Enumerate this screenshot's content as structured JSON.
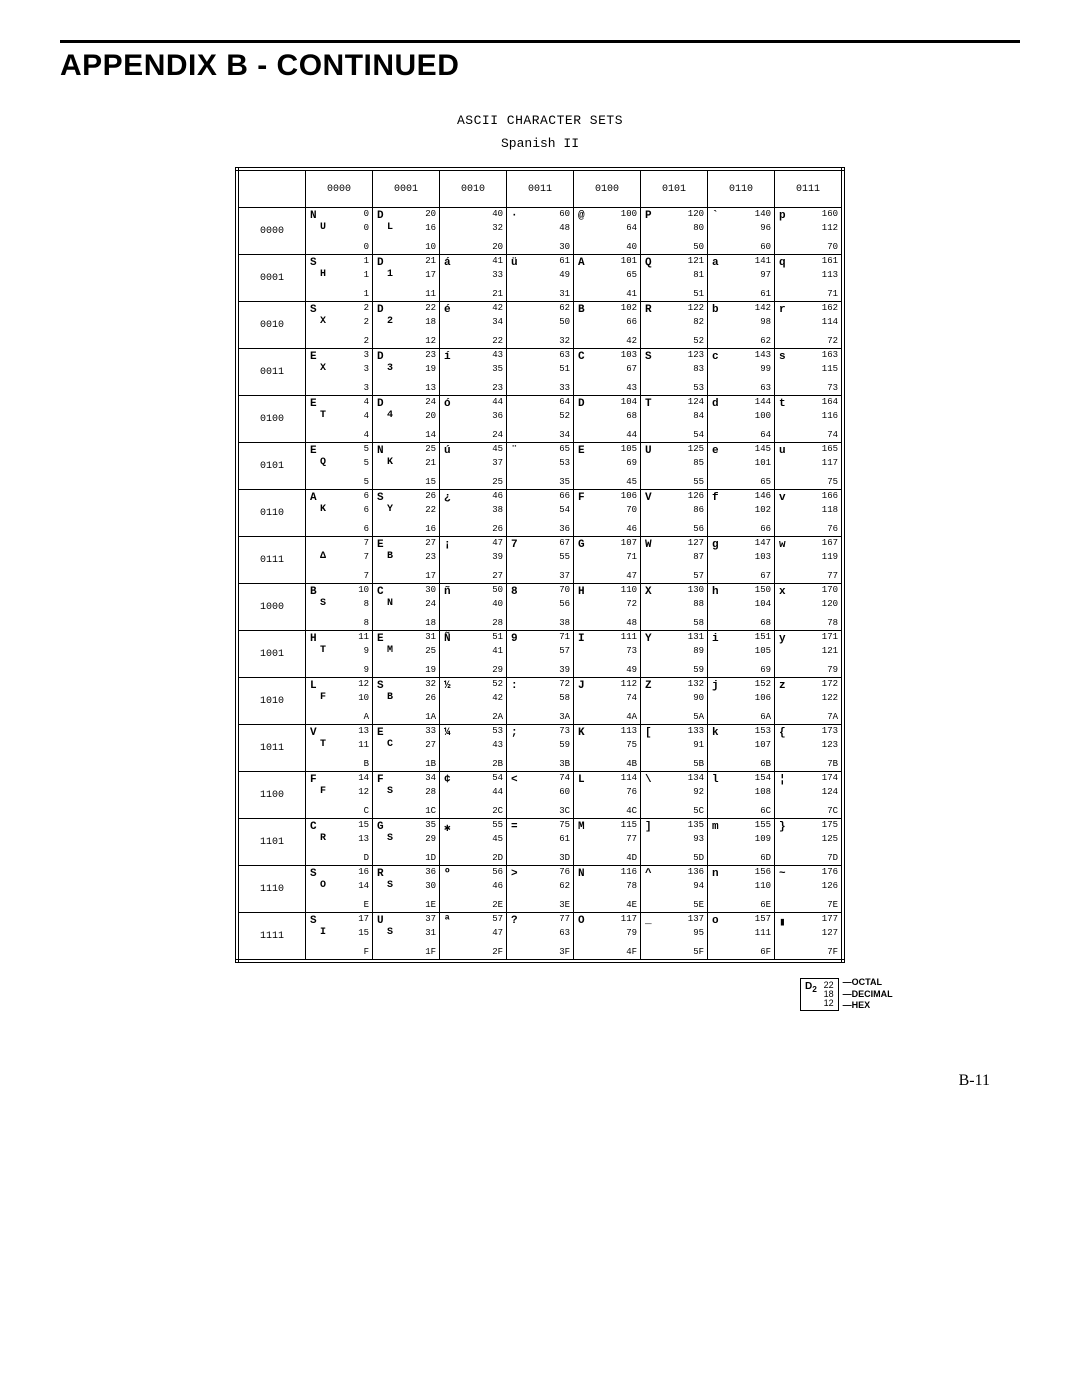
{
  "title": "APPENDIX B - CONTINUED",
  "chart_title": "ASCII CHARACTER SETS",
  "chart_subtitle": "Spanish II",
  "page_number": "B-11",
  "col_headers": [
    "",
    "0000",
    "0001",
    "0010",
    "0011",
    "0100",
    "0101",
    "0110",
    "0111"
  ],
  "row_headers": [
    "0000",
    "0001",
    "0010",
    "0011",
    "0100",
    "0101",
    "0110",
    "0111",
    "1000",
    "1001",
    "1010",
    "1011",
    "1100",
    "1101",
    "1110",
    "1111"
  ],
  "legend": {
    "glyph": "D",
    "sub": "2",
    "oct": "22",
    "dec": "18",
    "hex": "12",
    "lbl_oct": "OCTAL",
    "lbl_dec": "DECIMAL",
    "lbl_hex": "HEX"
  },
  "cells": [
    [
      {
        "g": "N",
        "c": "U",
        "o": "0",
        "d": "0",
        "h": "0"
      },
      {
        "g": "D",
        "c": "L",
        "o": "20",
        "d": "16",
        "h": "10"
      },
      {
        "g": "",
        "c": "",
        "o": "40",
        "d": "32",
        "h": "20"
      },
      {
        "g": "·",
        "c": "",
        "o": "60",
        "d": "48",
        "h": "30"
      },
      {
        "g": "@",
        "c": "",
        "o": "100",
        "d": "64",
        "h": "40"
      },
      {
        "g": "P",
        "c": "",
        "o": "120",
        "d": "80",
        "h": "50"
      },
      {
        "g": "`",
        "c": "",
        "o": "140",
        "d": "96",
        "h": "60"
      },
      {
        "g": "p",
        "c": "",
        "o": "160",
        "d": "112",
        "h": "70"
      }
    ],
    [
      {
        "g": "S",
        "c": "H",
        "o": "1",
        "d": "1",
        "h": "1"
      },
      {
        "g": "D",
        "c": "1",
        "o": "21",
        "d": "17",
        "h": "11"
      },
      {
        "g": "á",
        "c": "",
        "o": "41",
        "d": "33",
        "h": "21"
      },
      {
        "g": "ü",
        "c": "",
        "o": "61",
        "d": "49",
        "h": "31"
      },
      {
        "g": "A",
        "c": "",
        "o": "101",
        "d": "65",
        "h": "41"
      },
      {
        "g": "Q",
        "c": "",
        "o": "121",
        "d": "81",
        "h": "51"
      },
      {
        "g": "a",
        "c": "",
        "o": "141",
        "d": "97",
        "h": "61"
      },
      {
        "g": "q",
        "c": "",
        "o": "161",
        "d": "113",
        "h": "71"
      }
    ],
    [
      {
        "g": "S",
        "c": "X",
        "o": "2",
        "d": "2",
        "h": "2"
      },
      {
        "g": "D",
        "c": "2",
        "o": "22",
        "d": "18",
        "h": "12"
      },
      {
        "g": "é",
        "c": "",
        "o": "42",
        "d": "34",
        "h": "22"
      },
      {
        "g": "",
        "c": "",
        "o": "62",
        "d": "50",
        "h": "32"
      },
      {
        "g": "B",
        "c": "",
        "o": "102",
        "d": "66",
        "h": "42"
      },
      {
        "g": "R",
        "c": "",
        "o": "122",
        "d": "82",
        "h": "52"
      },
      {
        "g": "b",
        "c": "",
        "o": "142",
        "d": "98",
        "h": "62"
      },
      {
        "g": "r",
        "c": "",
        "o": "162",
        "d": "114",
        "h": "72"
      }
    ],
    [
      {
        "g": "E",
        "c": "X",
        "o": "3",
        "d": "3",
        "h": "3"
      },
      {
        "g": "D",
        "c": "3",
        "o": "23",
        "d": "19",
        "h": "13"
      },
      {
        "g": "í",
        "c": "",
        "o": "43",
        "d": "35",
        "h": "23"
      },
      {
        "g": "",
        "c": "",
        "o": "63",
        "d": "51",
        "h": "33"
      },
      {
        "g": "C",
        "c": "",
        "o": "103",
        "d": "67",
        "h": "43"
      },
      {
        "g": "S",
        "c": "",
        "o": "123",
        "d": "83",
        "h": "53"
      },
      {
        "g": "c",
        "c": "",
        "o": "143",
        "d": "99",
        "h": "63"
      },
      {
        "g": "s",
        "c": "",
        "o": "163",
        "d": "115",
        "h": "73"
      }
    ],
    [
      {
        "g": "E",
        "c": "T",
        "o": "4",
        "d": "4",
        "h": "4"
      },
      {
        "g": "D",
        "c": "4",
        "o": "24",
        "d": "20",
        "h": "14"
      },
      {
        "g": "ó",
        "c": "",
        "o": "44",
        "d": "36",
        "h": "24"
      },
      {
        "g": "",
        "c": "",
        "o": "64",
        "d": "52",
        "h": "34"
      },
      {
        "g": "D",
        "c": "",
        "o": "104",
        "d": "68",
        "h": "44"
      },
      {
        "g": "T",
        "c": "",
        "o": "124",
        "d": "84",
        "h": "54"
      },
      {
        "g": "d",
        "c": "",
        "o": "144",
        "d": "100",
        "h": "64"
      },
      {
        "g": "t",
        "c": "",
        "o": "164",
        "d": "116",
        "h": "74"
      }
    ],
    [
      {
        "g": "E",
        "c": "Q",
        "o": "5",
        "d": "5",
        "h": "5"
      },
      {
        "g": "N",
        "c": "K",
        "o": "25",
        "d": "21",
        "h": "15"
      },
      {
        "g": "ú",
        "c": "",
        "o": "45",
        "d": "37",
        "h": "25"
      },
      {
        "g": "¨",
        "c": "",
        "o": "65",
        "d": "53",
        "h": "35"
      },
      {
        "g": "E",
        "c": "",
        "o": "105",
        "d": "69",
        "h": "45"
      },
      {
        "g": "U",
        "c": "",
        "o": "125",
        "d": "85",
        "h": "55"
      },
      {
        "g": "e",
        "c": "",
        "o": "145",
        "d": "101",
        "h": "65"
      },
      {
        "g": "u",
        "c": "",
        "o": "165",
        "d": "117",
        "h": "75"
      }
    ],
    [
      {
        "g": "A",
        "c": "K",
        "o": "6",
        "d": "6",
        "h": "6"
      },
      {
        "g": "S",
        "c": "Y",
        "o": "26",
        "d": "22",
        "h": "16"
      },
      {
        "g": "¿",
        "c": "",
        "o": "46",
        "d": "38",
        "h": "26"
      },
      {
        "g": "",
        "c": "",
        "o": "66",
        "d": "54",
        "h": "36"
      },
      {
        "g": "F",
        "c": "",
        "o": "106",
        "d": "70",
        "h": "46"
      },
      {
        "g": "V",
        "c": "",
        "o": "126",
        "d": "86",
        "h": "56"
      },
      {
        "g": "f",
        "c": "",
        "o": "146",
        "d": "102",
        "h": "66"
      },
      {
        "g": "v",
        "c": "",
        "o": "166",
        "d": "118",
        "h": "76"
      }
    ],
    [
      {
        "g": "",
        "c": "Δ",
        "o": "7",
        "d": "7",
        "h": "7"
      },
      {
        "g": "E",
        "c": "B",
        "o": "27",
        "d": "23",
        "h": "17"
      },
      {
        "g": "¡",
        "c": "",
        "o": "47",
        "d": "39",
        "h": "27"
      },
      {
        "g": "7",
        "c": "",
        "o": "67",
        "d": "55",
        "h": "37"
      },
      {
        "g": "G",
        "c": "",
        "o": "107",
        "d": "71",
        "h": "47"
      },
      {
        "g": "W",
        "c": "",
        "o": "127",
        "d": "87",
        "h": "57"
      },
      {
        "g": "g",
        "c": "",
        "o": "147",
        "d": "103",
        "h": "67"
      },
      {
        "g": "w",
        "c": "",
        "o": "167",
        "d": "119",
        "h": "77"
      }
    ],
    [
      {
        "g": "B",
        "c": "S",
        "o": "10",
        "d": "8",
        "h": "8"
      },
      {
        "g": "C",
        "c": "N",
        "o": "30",
        "d": "24",
        "h": "18"
      },
      {
        "g": "ñ",
        "c": "",
        "o": "50",
        "d": "40",
        "h": "28"
      },
      {
        "g": "8",
        "c": "",
        "o": "70",
        "d": "56",
        "h": "38"
      },
      {
        "g": "H",
        "c": "",
        "o": "110",
        "d": "72",
        "h": "48"
      },
      {
        "g": "X",
        "c": "",
        "o": "130",
        "d": "88",
        "h": "58"
      },
      {
        "g": "h",
        "c": "",
        "o": "150",
        "d": "104",
        "h": "68"
      },
      {
        "g": "x",
        "c": "",
        "o": "170",
        "d": "120",
        "h": "78"
      }
    ],
    [
      {
        "g": "H",
        "c": "T",
        "o": "11",
        "d": "9",
        "h": "9"
      },
      {
        "g": "E",
        "c": "M",
        "o": "31",
        "d": "25",
        "h": "19"
      },
      {
        "g": "Ñ",
        "c": "",
        "o": "51",
        "d": "41",
        "h": "29"
      },
      {
        "g": "9",
        "c": "",
        "o": "71",
        "d": "57",
        "h": "39"
      },
      {
        "g": "I",
        "c": "",
        "o": "111",
        "d": "73",
        "h": "49"
      },
      {
        "g": "Y",
        "c": "",
        "o": "131",
        "d": "89",
        "h": "59"
      },
      {
        "g": "i",
        "c": "",
        "o": "151",
        "d": "105",
        "h": "69"
      },
      {
        "g": "y",
        "c": "",
        "o": "171",
        "d": "121",
        "h": "79"
      }
    ],
    [
      {
        "g": "L",
        "c": "F",
        "o": "12",
        "d": "10",
        "h": "A"
      },
      {
        "g": "S",
        "c": "B",
        "o": "32",
        "d": "26",
        "h": "1A"
      },
      {
        "g": "½",
        "c": "",
        "o": "52",
        "d": "42",
        "h": "2A"
      },
      {
        "g": ":",
        "c": "",
        "o": "72",
        "d": "58",
        "h": "3A"
      },
      {
        "g": "J",
        "c": "",
        "o": "112",
        "d": "74",
        "h": "4A"
      },
      {
        "g": "Z",
        "c": "",
        "o": "132",
        "d": "90",
        "h": "5A"
      },
      {
        "g": "j",
        "c": "",
        "o": "152",
        "d": "106",
        "h": "6A"
      },
      {
        "g": "z",
        "c": "",
        "o": "172",
        "d": "122",
        "h": "7A"
      }
    ],
    [
      {
        "g": "V",
        "c": "T",
        "o": "13",
        "d": "11",
        "h": "B"
      },
      {
        "g": "E",
        "c": "C",
        "o": "33",
        "d": "27",
        "h": "1B"
      },
      {
        "g": "¼",
        "c": "",
        "o": "53",
        "d": "43",
        "h": "2B"
      },
      {
        "g": ";",
        "c": "",
        "o": "73",
        "d": "59",
        "h": "3B"
      },
      {
        "g": "K",
        "c": "",
        "o": "113",
        "d": "75",
        "h": "4B"
      },
      {
        "g": "[",
        "c": "",
        "o": "133",
        "d": "91",
        "h": "5B"
      },
      {
        "g": "k",
        "c": "",
        "o": "153",
        "d": "107",
        "h": "6B"
      },
      {
        "g": "{",
        "c": "",
        "o": "173",
        "d": "123",
        "h": "7B"
      }
    ],
    [
      {
        "g": "F",
        "c": "F",
        "o": "14",
        "d": "12",
        "h": "C"
      },
      {
        "g": "F",
        "c": "S",
        "o": "34",
        "d": "28",
        "h": "1C"
      },
      {
        "g": "¢",
        "c": "",
        "o": "54",
        "d": "44",
        "h": "2C"
      },
      {
        "g": "<",
        "c": "",
        "o": "74",
        "d": "60",
        "h": "3C"
      },
      {
        "g": "L",
        "c": "",
        "o": "114",
        "d": "76",
        "h": "4C"
      },
      {
        "g": "\\",
        "c": "",
        "o": "134",
        "d": "92",
        "h": "5C"
      },
      {
        "g": "l",
        "c": "",
        "o": "154",
        "d": "108",
        "h": "6C"
      },
      {
        "g": "¦",
        "c": "",
        "o": "174",
        "d": "124",
        "h": "7C"
      }
    ],
    [
      {
        "g": "C",
        "c": "R",
        "o": "15",
        "d": "13",
        "h": "D"
      },
      {
        "g": "G",
        "c": "S",
        "o": "35",
        "d": "29",
        "h": "1D"
      },
      {
        "g": "✱",
        "c": "",
        "o": "55",
        "d": "45",
        "h": "2D"
      },
      {
        "g": "=",
        "c": "",
        "o": "75",
        "d": "61",
        "h": "3D"
      },
      {
        "g": "M",
        "c": "",
        "o": "115",
        "d": "77",
        "h": "4D"
      },
      {
        "g": "]",
        "c": "",
        "o": "135",
        "d": "93",
        "h": "5D"
      },
      {
        "g": "m",
        "c": "",
        "o": "155",
        "d": "109",
        "h": "6D"
      },
      {
        "g": "}",
        "c": "",
        "o": "175",
        "d": "125",
        "h": "7D"
      }
    ],
    [
      {
        "g": "S",
        "c": "O",
        "o": "16",
        "d": "14",
        "h": "E"
      },
      {
        "g": "R",
        "c": "S",
        "o": "36",
        "d": "30",
        "h": "1E"
      },
      {
        "g": "º",
        "c": "",
        "o": "56",
        "d": "46",
        "h": "2E"
      },
      {
        "g": ">",
        "c": "",
        "o": "76",
        "d": "62",
        "h": "3E"
      },
      {
        "g": "N",
        "c": "",
        "o": "116",
        "d": "78",
        "h": "4E"
      },
      {
        "g": "^",
        "c": "",
        "o": "136",
        "d": "94",
        "h": "5E"
      },
      {
        "g": "n",
        "c": "",
        "o": "156",
        "d": "110",
        "h": "6E"
      },
      {
        "g": "~",
        "c": "",
        "o": "176",
        "d": "126",
        "h": "7E"
      }
    ],
    [
      {
        "g": "S",
        "c": "I",
        "o": "17",
        "d": "15",
        "h": "F"
      },
      {
        "g": "U",
        "c": "S",
        "o": "37",
        "d": "31",
        "h": "1F"
      },
      {
        "g": "ª",
        "c": "",
        "o": "57",
        "d": "47",
        "h": "2F"
      },
      {
        "g": "?",
        "c": "",
        "o": "77",
        "d": "63",
        "h": "3F"
      },
      {
        "g": "O",
        "c": "",
        "o": "117",
        "d": "79",
        "h": "4F"
      },
      {
        "g": "_",
        "c": "",
        "o": "137",
        "d": "95",
        "h": "5F"
      },
      {
        "g": "o",
        "c": "",
        "o": "157",
        "d": "111",
        "h": "6F"
      },
      {
        "g": "▮",
        "c": "",
        "o": "177",
        "d": "127",
        "h": "7F"
      }
    ]
  ]
}
